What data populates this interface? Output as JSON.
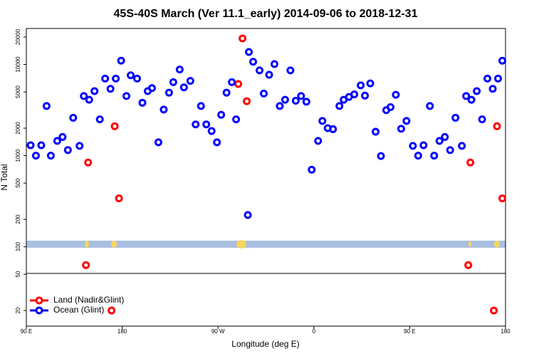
{
  "chart_data": {
    "type": "scatter",
    "title": "45S-40S March (Ver 11.1_early)   2014-09-06 to 2018-12-31",
    "x_label": "Longitude (deg E)",
    "y_label": "N Total",
    "ylog": true,
    "legend": "bottomleft",
    "xlim": [
      90,
      540
    ],
    "xticks": [
      {
        "value": 90,
        "label": "90 E"
      },
      {
        "value": 180,
        "label": "180"
      },
      {
        "value": 270,
        "label": "90 W"
      },
      {
        "value": 360,
        "label": "0"
      },
      {
        "value": 450,
        "label": "90 E"
      },
      {
        "value": 540,
        "label": "180"
      }
    ],
    "ylim": [
      13.5,
      24800
    ],
    "yticks": [
      20,
      50,
      100,
      200,
      500,
      1000,
      2000,
      5000,
      10000,
      20000
    ],
    "series": [
      {
        "name": "Land (Nadir&Glint)",
        "color": "#ff0000",
        "x": [
          148,
          146,
          173,
          177,
          289,
          293,
          297,
          170,
          505,
          507,
          532,
          537,
          529
        ],
        "values": [
          840,
          63,
          2100,
          340,
          6100,
          19300,
          3950,
          20,
          63,
          840,
          2100,
          340,
          20
        ]
      },
      {
        "name": "Ocean (Glint)",
        "color": "#0000ff",
        "x": [
          94,
          99,
          104,
          109,
          113,
          119,
          124,
          129,
          134,
          140,
          144,
          149,
          154,
          159,
          164,
          169,
          174,
          179,
          184,
          188,
          194,
          199,
          204,
          208,
          214,
          219,
          224,
          228,
          234,
          238,
          244,
          249,
          254,
          259,
          264,
          269,
          273,
          278,
          283,
          287,
          298,
          299,
          303,
          309,
          313,
          318,
          323,
          328,
          333,
          338,
          343,
          348,
          353,
          358,
          364,
          368,
          373,
          378,
          384,
          388,
          393,
          398,
          404,
          408,
          413,
          418,
          423,
          428,
          432,
          437,
          442,
          447,
          453,
          458,
          463,
          469,
          473,
          478,
          483,
          488,
          493,
          499,
          503,
          508,
          513,
          518,
          523,
          528,
          533,
          537
        ],
        "values": [
          1300,
          1000,
          1300,
          3500,
          1000,
          1450,
          1600,
          1150,
          2600,
          1280,
          4500,
          4100,
          5100,
          2500,
          7000,
          5400,
          7000,
          11000,
          4500,
          7600,
          7000,
          3800,
          5100,
          5500,
          1400,
          3200,
          4900,
          6400,
          8800,
          5600,
          6600,
          2200,
          3500,
          2200,
          1860,
          1400,
          2800,
          4900,
          6400,
          2500,
          223,
          13700,
          10700,
          8600,
          4800,
          7700,
          10100,
          3500,
          4100,
          8600,
          4000,
          4500,
          3900,
          700,
          1450,
          2400,
          2000,
          1950,
          3500,
          4100,
          4400,
          4700,
          5900,
          4550,
          6200,
          1830,
          990,
          3150,
          3400,
          4650,
          1970,
          2400,
          1280,
          1000,
          1300,
          3500,
          1000,
          1450,
          1600,
          1150,
          2600,
          1280,
          4500,
          4100,
          5100,
          2500,
          7000,
          5400,
          7000,
          11000
        ]
      }
    ]
  }
}
